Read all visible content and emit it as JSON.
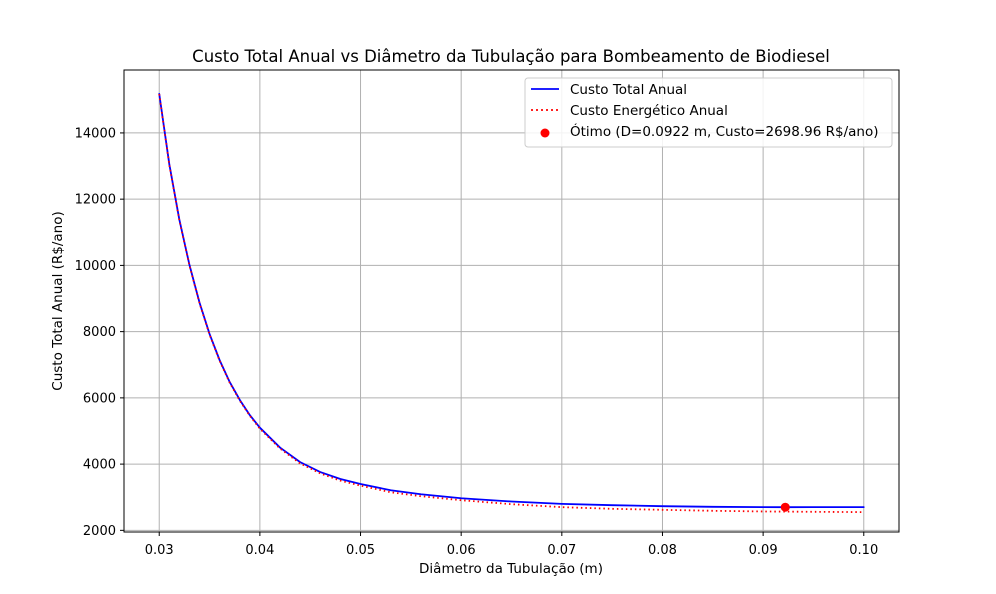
{
  "chart_data": {
    "type": "line",
    "title": "Custo Total Anual vs Diâmetro da Tubulação para Bombeamento de Biodiesel",
    "xlabel": "Diâmetro da Tubulação (m)",
    "ylabel": "Custo Total Anual (R$/ano)",
    "xlim": [
      0.0265,
      0.1035
    ],
    "ylim": [
      1950,
      15900
    ],
    "xticks": [
      "0.03",
      "0.04",
      "0.05",
      "0.06",
      "0.07",
      "0.08",
      "0.09",
      "0.10"
    ],
    "yticks": [
      "2000",
      "4000",
      "6000",
      "8000",
      "10000",
      "12000",
      "14000"
    ],
    "grid": true,
    "legend_position": "top-right",
    "series": [
      {
        "name": "Custo Total Anual",
        "style": "solid",
        "color": "#0000ff",
        "x": [
          0.03,
          0.031,
          0.032,
          0.033,
          0.034,
          0.035,
          0.036,
          0.037,
          0.038,
          0.039,
          0.04,
          0.042,
          0.044,
          0.046,
          0.048,
          0.05,
          0.053,
          0.056,
          0.06,
          0.065,
          0.07,
          0.075,
          0.08,
          0.085,
          0.09,
          0.0922,
          0.095,
          0.1
        ],
        "y": [
          15180,
          13060,
          11380,
          10020,
          8880,
          7930,
          7140,
          6480,
          5940,
          5480,
          5100,
          4500,
          4060,
          3760,
          3550,
          3400,
          3210,
          3090,
          2970,
          2870,
          2800,
          2760,
          2730,
          2710,
          2700,
          2699,
          2700,
          2702
        ]
      },
      {
        "name": "Custo Energético Anual",
        "style": "dotted",
        "color": "#ff0000",
        "x": [
          0.03,
          0.031,
          0.032,
          0.033,
          0.034,
          0.035,
          0.036,
          0.037,
          0.038,
          0.039,
          0.04,
          0.042,
          0.044,
          0.046,
          0.048,
          0.05,
          0.053,
          0.056,
          0.06,
          0.065,
          0.07,
          0.075,
          0.08,
          0.085,
          0.09,
          0.095,
          0.1
        ],
        "y": [
          15170,
          13040,
          11360,
          10000,
          8860,
          7910,
          7120,
          6460,
          5920,
          5460,
          5070,
          4470,
          4020,
          3720,
          3500,
          3350,
          3150,
          3030,
          2910,
          2790,
          2700,
          2650,
          2620,
          2590,
          2570,
          2560,
          2550
        ]
      },
      {
        "name": "Ótimo (D=0.0922 m, Custo=2698.96 R$/ano)",
        "style": "marker",
        "color": "#ff0000",
        "x": [
          0.0922
        ],
        "y": [
          2698.96
        ]
      }
    ]
  }
}
